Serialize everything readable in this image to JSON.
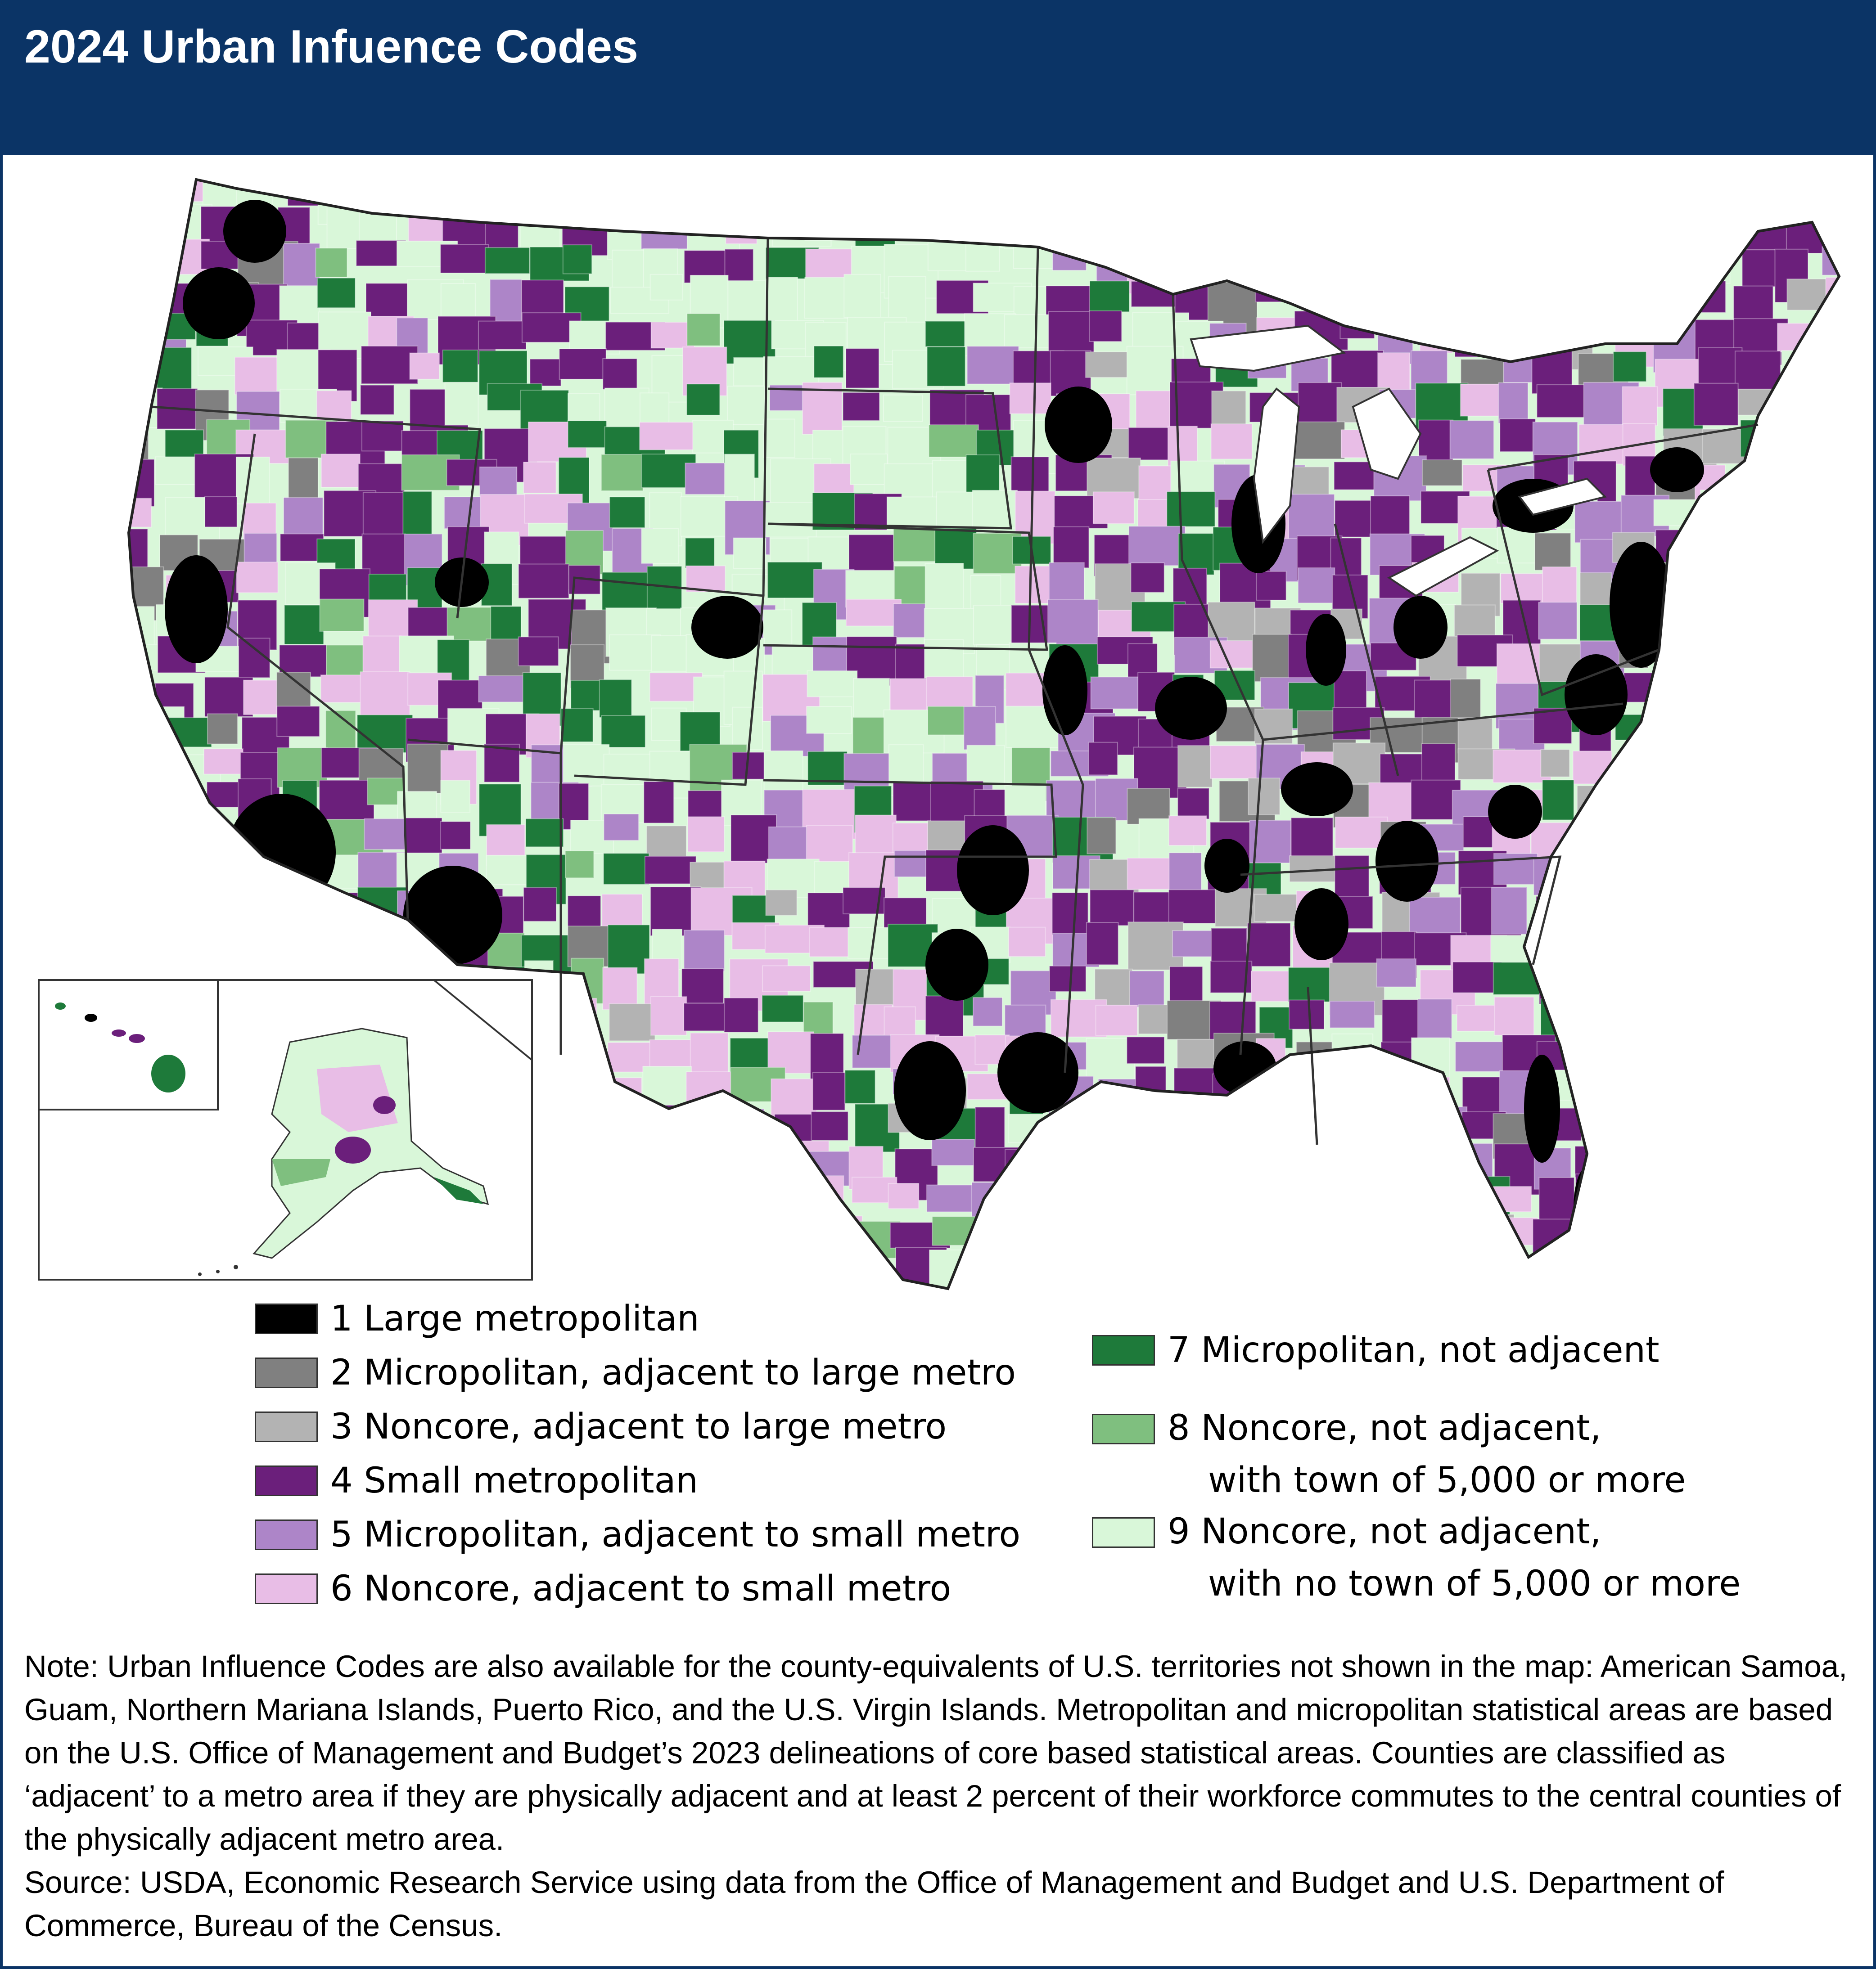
{
  "title": "2024 Urban Infuence Codes",
  "legend": [
    {
      "code": "1",
      "label": "1 Large metropolitan",
      "color": "#000000"
    },
    {
      "code": "2",
      "label": "2 Micropolitan, adjacent to large metro",
      "color": "#808080"
    },
    {
      "code": "3",
      "label": "3 Noncore, adjacent to large metro",
      "color": "#b3b3b3"
    },
    {
      "code": "4",
      "label": "4 Small metropolitan",
      "color": "#6b1f7b"
    },
    {
      "code": "5",
      "label": "5 Micropolitan, adjacent to small metro",
      "color": "#ad85c8"
    },
    {
      "code": "6",
      "label": "6 Noncore, adjacent to small metro",
      "color": "#e8bde6"
    },
    {
      "code": "7",
      "label": "7 Micropolitan, not adjacent",
      "color": "#1e7a3a"
    },
    {
      "code": "8",
      "label_line1": "8 Noncore, not adjacent,",
      "label_line2": "with town of 5,000 or more",
      "color": "#7fbf7f"
    },
    {
      "code": "9",
      "label_line1": "9 Noncore, not adjacent,",
      "label_line2": "with no town of 5,000 or more",
      "color": "#d9f7d9"
    }
  ],
  "note": "Note: Urban Influence Codes are also available for the county-equivalents of U.S. territories not shown in the map: American Samoa, Guam, Northern Mariana Islands, Puerto Rico, and the U.S. Virgin Islands. Metropolitan and micropolitan statistical areas are based on the U.S. Office of Management and Budget’s 2023 delineations of core based statistical areas. Counties are classified as ‘adjacent’ to a metro area if they are physically adjacent and at least 2 percent of their workforce commutes to the central counties of the physically adjacent metro area.",
  "source": "Source: USDA, Economic Research Service using data from the Office of Management and Budget and U.S. Department of Commerce, Bureau of the Census."
}
